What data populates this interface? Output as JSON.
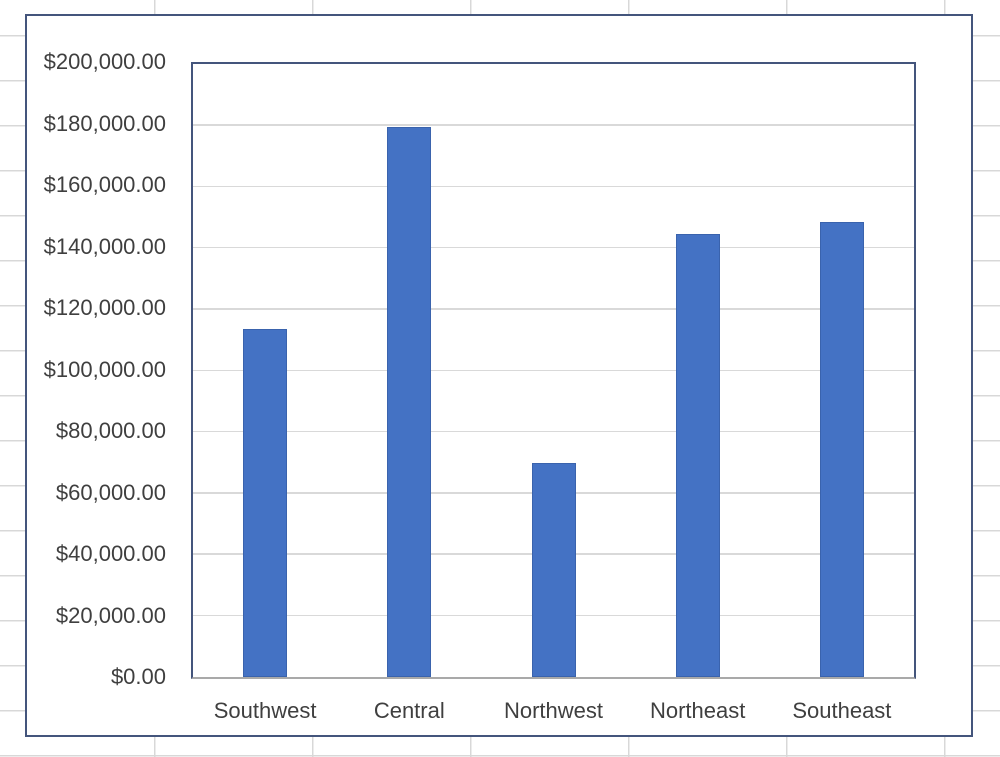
{
  "worksheet": {
    "description": "Excel worksheet with embedded column chart",
    "gridline_color": "#d8d8d8"
  },
  "chart": {
    "border_color": "#44557c",
    "plot_border_color": "#44557c",
    "axis_line_color": "#a9a9a9",
    "gridline_color": "#d9d9d9",
    "bar_color": "#4472c4",
    "text_color": "#3f3f3f",
    "title": "",
    "legend": "none"
  },
  "chart_data": {
    "type": "bar",
    "categories": [
      "Southwest",
      "Central",
      "Northwest",
      "Northeast",
      "Southeast"
    ],
    "values": [
      113500,
      179500,
      69800,
      144600,
      148400
    ],
    "title": "",
    "xlabel": "",
    "ylabel": "",
    "ylim": [
      0,
      200000
    ],
    "ytick_step": 20000,
    "ytick_labels": [
      "$200,000.00",
      "$180,000.00",
      "$160,000.00",
      "$140,000.00",
      "$120,000.00",
      "$100,000.00",
      "$80,000.00",
      "$60,000.00",
      "$40,000.00",
      "$20,000.00",
      "$0.00"
    ],
    "grid": true,
    "legend_position": "none"
  }
}
